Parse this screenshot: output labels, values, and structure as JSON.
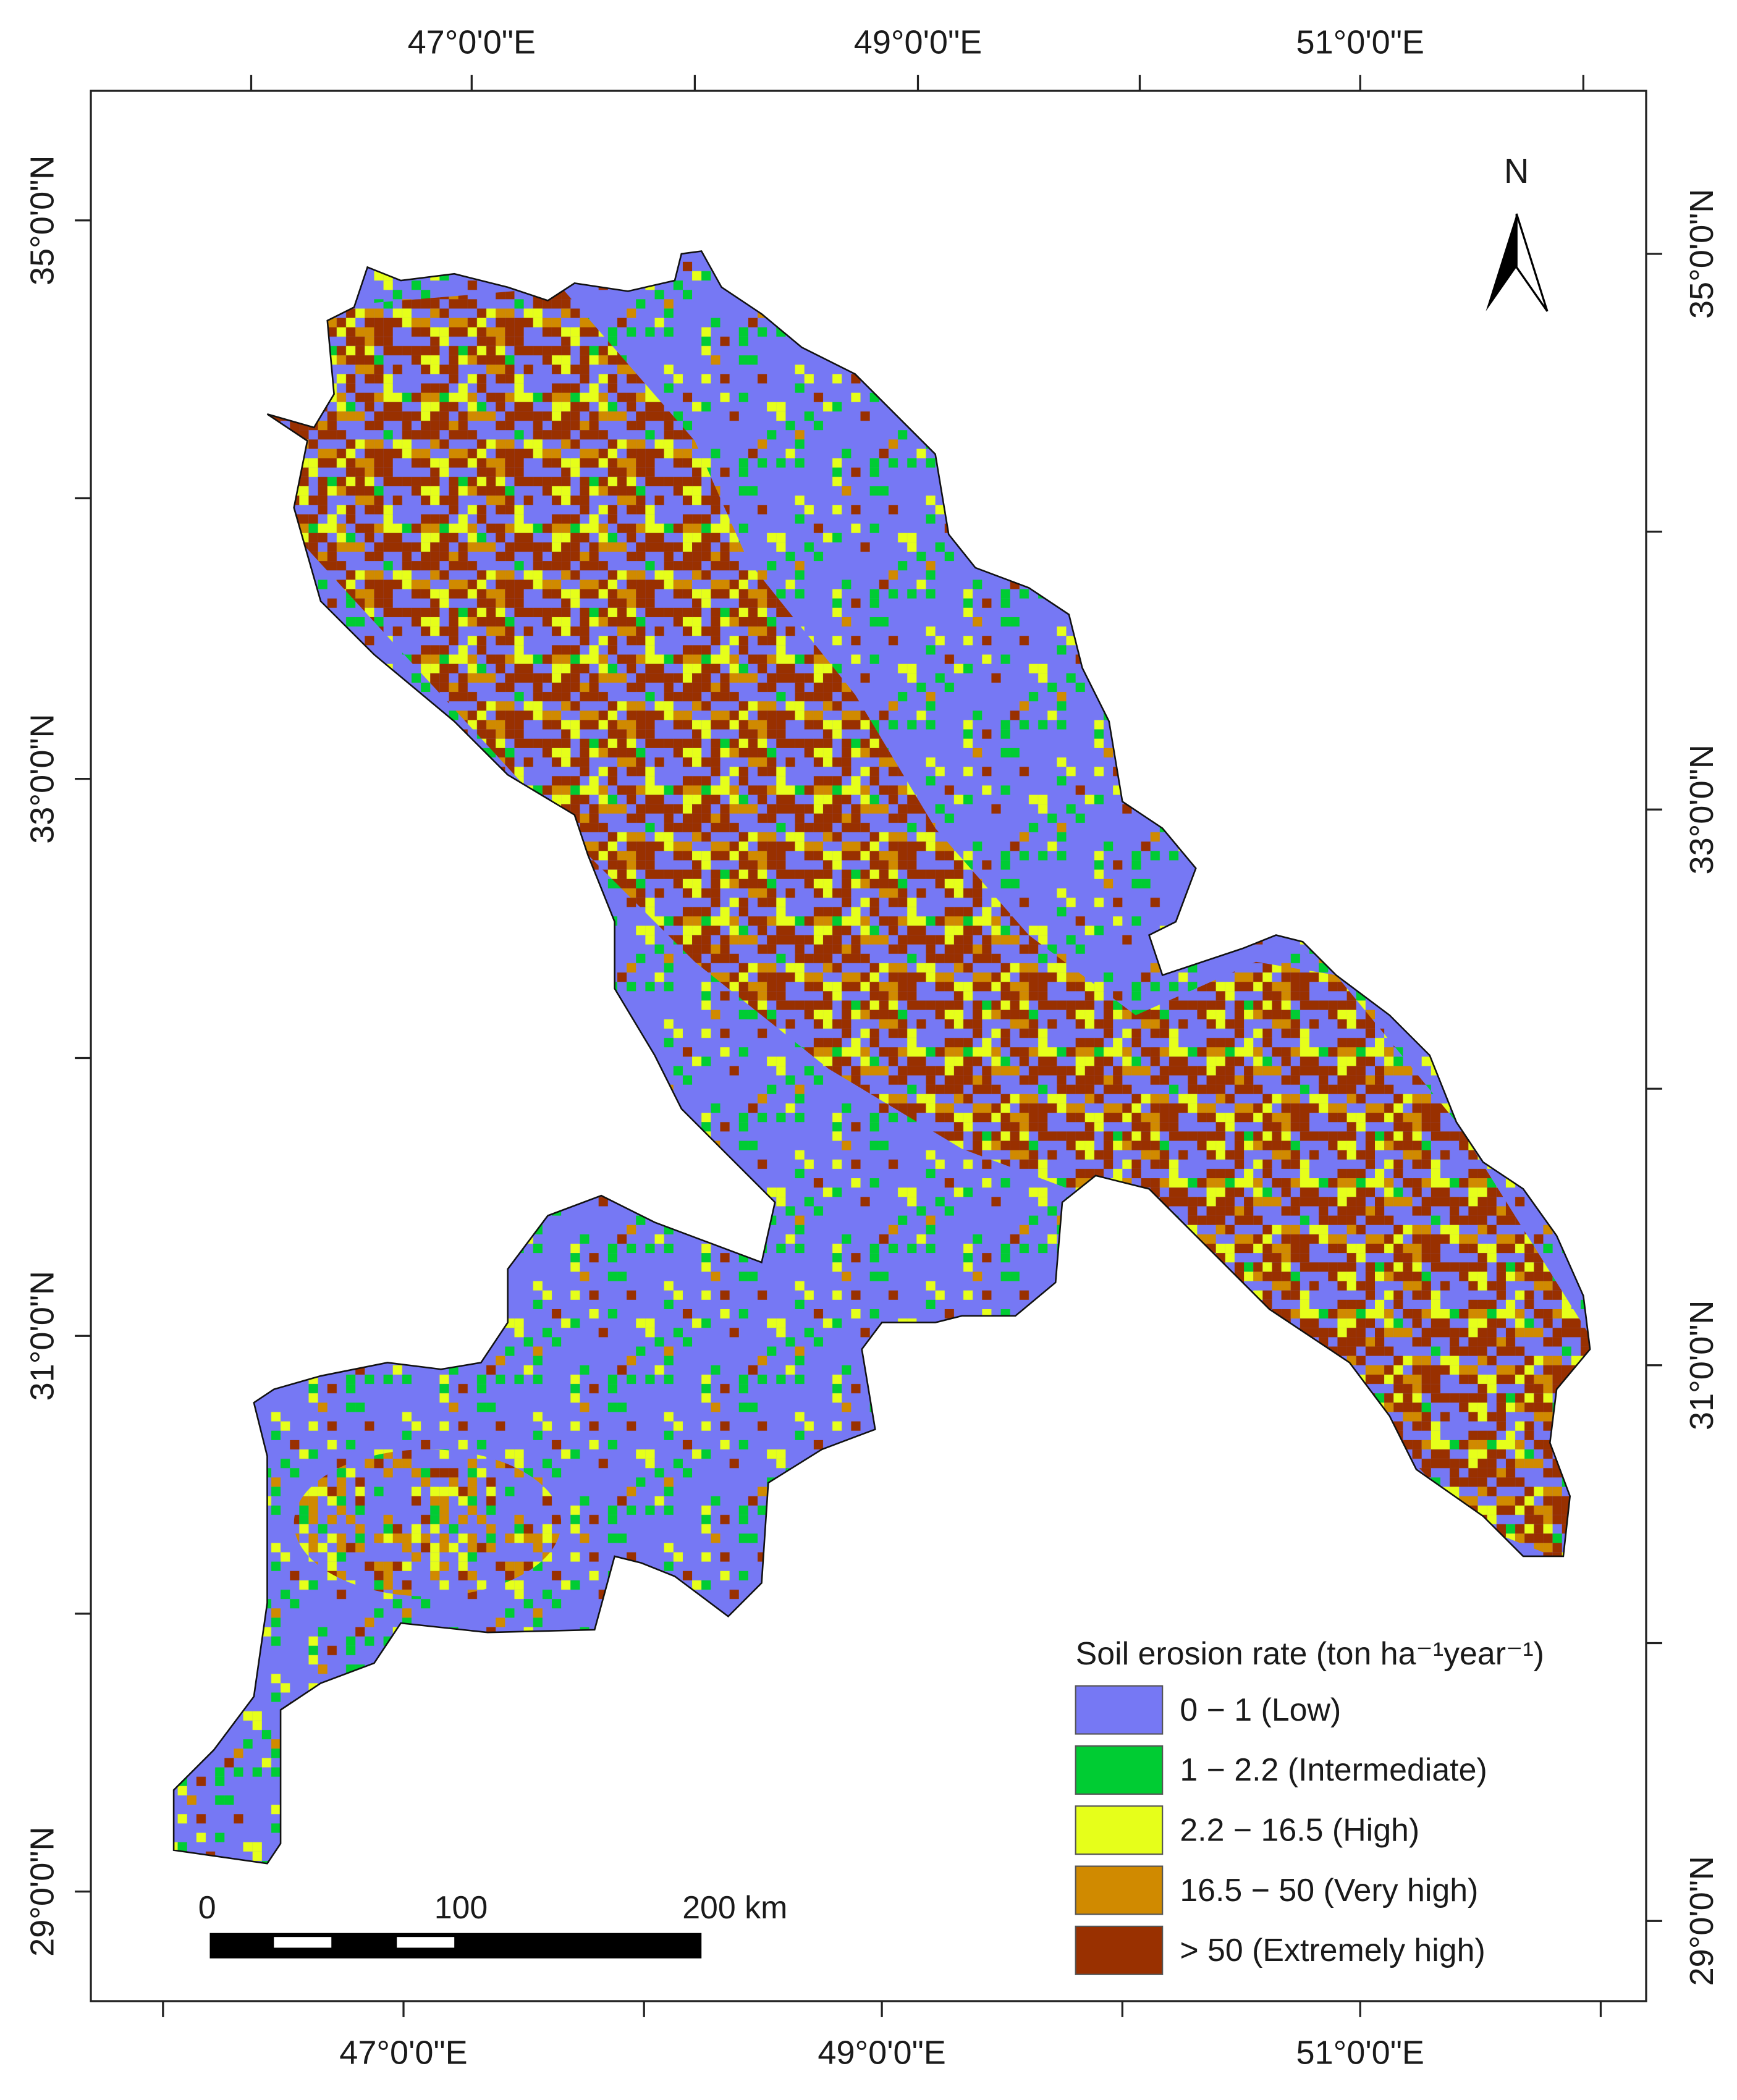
{
  "map": {
    "top_labels": [
      "47°0'0\"E",
      "49°0'0\"E",
      "51°0'0\"E"
    ],
    "bottom_labels": [
      "47°0'0\"E",
      "49°0'0\"E",
      "51°0'0\"E"
    ],
    "left_labels": [
      "35°0'0\"N",
      "33°0'0\"N",
      "31°0'0\"N",
      "29°0'0\"N"
    ],
    "right_labels": [
      "35°0'0\"N",
      "33°0'0\"N",
      "31°0'0\"N",
      "29°0'0\"N"
    ],
    "north_label": "N",
    "scale_bar": {
      "labels": [
        "0",
        "100",
        "200 km"
      ]
    },
    "legend": {
      "title": "Soil erosion rate (ton ha⁻¹year⁻¹)",
      "items": [
        {
          "label": "0 − 1 (Low)",
          "color": "#7678f4"
        },
        {
          "label": "1 − 2.2 (Intermediate)",
          "color": "#00cc33"
        },
        {
          "label": "2.2 − 16.5 (High)",
          "color": "#e6ff1a"
        },
        {
          "label": "16.5 − 50 (Very high)",
          "color": "#d08a00"
        },
        {
          "label": "> 50 (Extremely high)",
          "color": "#993000"
        }
      ]
    }
  }
}
